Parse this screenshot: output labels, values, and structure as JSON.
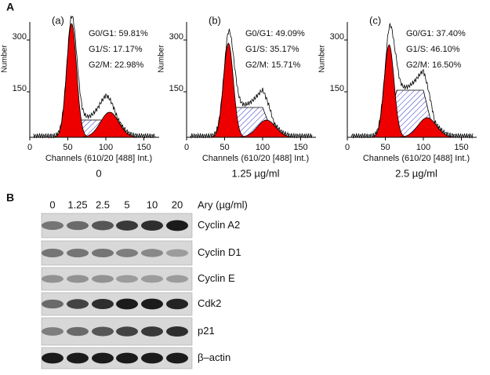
{
  "panel_a": {
    "label": "A",
    "plots": [
      {
        "label": "(a)",
        "ylabel": "Number",
        "xlabel": "Channels (610/20 [488] Int.)",
        "xticks": [
          0,
          50,
          100,
          150
        ],
        "yticks": [
          150,
          300
        ],
        "stats": [
          "G0/G1: 59.81%",
          "G1/S: 17.17%",
          "G2/M: 22.98%"
        ],
        "dose": "0"
      },
      {
        "label": "(b)",
        "ylabel": "Number",
        "xlabel": "Channels (610/20 [488] Int.)",
        "xticks": [
          0,
          50,
          100,
          150
        ],
        "yticks": [
          150,
          300
        ],
        "stats": [
          "G0/G1: 49.09%",
          "G1/S: 35.17%",
          "G2/M: 15.71%"
        ],
        "dose": "1.25 µg/ml"
      },
      {
        "label": "(c)",
        "ylabel": "Number",
        "xlabel": "Channels (610/20 [488] Int.)",
        "xticks": [
          0,
          50,
          100,
          150
        ],
        "yticks": [
          150,
          300
        ],
        "stats": [
          "G0/G1: 37.40%",
          "G1/S: 46.10%",
          "G2/M: 16.50%"
        ],
        "dose": "2.5 µg/ml"
      }
    ]
  },
  "panel_b": {
    "label": "B",
    "doses": [
      "0",
      "1.25",
      "2.5",
      "5",
      "10",
      "20"
    ],
    "dose_label": "Ary (µg/ml)",
    "proteins": [
      "Cyclin A2",
      "Cyclin D1",
      "Cyclin E",
      "Cdk2",
      "p21",
      "β–actin"
    ]
  }
}
